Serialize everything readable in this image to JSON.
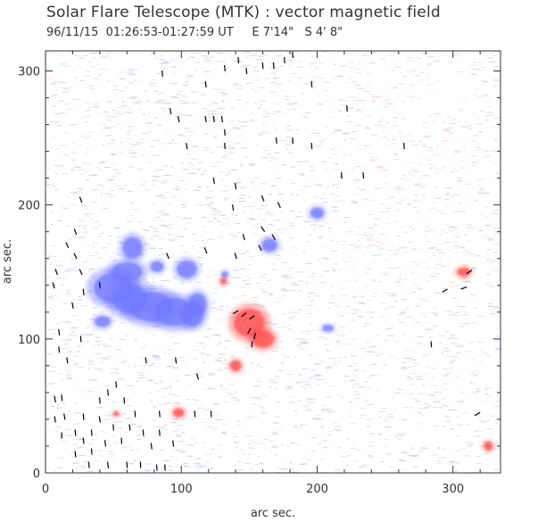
{
  "title": "Solar Flare Telescope (MTK) : vector magnetic field",
  "subtitle": "96/11/15  01:26:53-01:27:59 UT     E 7'14\"   S 4' 8\"",
  "axes": {
    "xlabel": "arc sec.",
    "ylabel": "arc sec.",
    "xlim": [
      0,
      335
    ],
    "ylim": [
      0,
      315
    ],
    "xticks": [
      0,
      100,
      200,
      300
    ],
    "yticks": [
      0,
      100,
      200,
      300
    ]
  },
  "colors": {
    "negative_polarity": "#6f78ff",
    "positive_polarity": "#ff4a4a",
    "background_noise_blue": "#b9bff0",
    "background_noise_red": "#f5c3c3",
    "vector": "#000000",
    "axis": "#333333"
  },
  "magnetic_regions": [
    {
      "polarity": "negative",
      "x": 50,
      "y": 138,
      "rx": 18,
      "ry": 14
    },
    {
      "polarity": "negative",
      "x": 62,
      "y": 130,
      "rx": 16,
      "ry": 14
    },
    {
      "polarity": "negative",
      "x": 78,
      "y": 124,
      "rx": 20,
      "ry": 14
    },
    {
      "polarity": "negative",
      "x": 95,
      "y": 120,
      "rx": 18,
      "ry": 13
    },
    {
      "polarity": "negative",
      "x": 108,
      "y": 118,
      "rx": 10,
      "ry": 11
    },
    {
      "polarity": "negative",
      "x": 112,
      "y": 126,
      "rx": 8,
      "ry": 10
    },
    {
      "polarity": "negative",
      "x": 64,
      "y": 168,
      "rx": 9,
      "ry": 10
    },
    {
      "polarity": "negative",
      "x": 60,
      "y": 150,
      "rx": 14,
      "ry": 9
    },
    {
      "polarity": "negative",
      "x": 82,
      "y": 154,
      "rx": 6,
      "ry": 5
    },
    {
      "polarity": "negative",
      "x": 104,
      "y": 152,
      "rx": 9,
      "ry": 8
    },
    {
      "polarity": "negative",
      "x": 132,
      "y": 148,
      "rx": 3,
      "ry": 3
    },
    {
      "polarity": "negative",
      "x": 42,
      "y": 113,
      "rx": 7,
      "ry": 5
    },
    {
      "polarity": "negative",
      "x": 165,
      "y": 170,
      "rx": 7,
      "ry": 6
    },
    {
      "polarity": "negative",
      "x": 200,
      "y": 194,
      "rx": 6,
      "ry": 5
    },
    {
      "polarity": "negative",
      "x": 208,
      "y": 108,
      "rx": 5,
      "ry": 3
    },
    {
      "polarity": "positive",
      "x": 150,
      "y": 112,
      "rx": 14,
      "ry": 13
    },
    {
      "polarity": "positive",
      "x": 160,
      "y": 100,
      "rx": 10,
      "ry": 8
    },
    {
      "polarity": "positive",
      "x": 140,
      "y": 80,
      "rx": 5,
      "ry": 5
    },
    {
      "polarity": "positive",
      "x": 98,
      "y": 45,
      "rx": 5,
      "ry": 4
    },
    {
      "polarity": "positive",
      "x": 131,
      "y": 143,
      "rx": 3,
      "ry": 3
    },
    {
      "polarity": "positive",
      "x": 308,
      "y": 150,
      "rx": 6,
      "ry": 4
    },
    {
      "polarity": "positive",
      "x": 326,
      "y": 20,
      "rx": 4,
      "ry": 4
    },
    {
      "polarity": "positive",
      "x": 52,
      "y": 44,
      "rx": 3,
      "ry": 2
    }
  ],
  "vectors": [
    {
      "x": 7,
      "y": 55,
      "angle": 100
    },
    {
      "x": 12,
      "y": 56,
      "angle": 95
    },
    {
      "x": 7,
      "y": 40,
      "angle": 98
    },
    {
      "x": 14,
      "y": 42,
      "angle": 100
    },
    {
      "x": 12,
      "y": 28,
      "angle": 92
    },
    {
      "x": 22,
      "y": 30,
      "angle": 96
    },
    {
      "x": 28,
      "y": 42,
      "angle": 95
    },
    {
      "x": 28,
      "y": 24,
      "angle": 97
    },
    {
      "x": 34,
      "y": 30,
      "angle": 94
    },
    {
      "x": 40,
      "y": 40,
      "angle": 99
    },
    {
      "x": 40,
      "y": 54,
      "angle": 95
    },
    {
      "x": 46,
      "y": 60,
      "angle": 98
    },
    {
      "x": 52,
      "y": 66,
      "angle": 96
    },
    {
      "x": 58,
      "y": 54,
      "angle": 93
    },
    {
      "x": 34,
      "y": 16,
      "angle": 95
    },
    {
      "x": 22,
      "y": 14,
      "angle": 96
    },
    {
      "x": 44,
      "y": 22,
      "angle": 98
    },
    {
      "x": 50,
      "y": 34,
      "angle": 95
    },
    {
      "x": 56,
      "y": 24,
      "angle": 92
    },
    {
      "x": 62,
      "y": 34,
      "angle": 96
    },
    {
      "x": 66,
      "y": 44,
      "angle": 94
    },
    {
      "x": 72,
      "y": 30,
      "angle": 95
    },
    {
      "x": 78,
      "y": 20,
      "angle": 98
    },
    {
      "x": 84,
      "y": 44,
      "angle": 97
    },
    {
      "x": 84,
      "y": 30,
      "angle": 95
    },
    {
      "x": 94,
      "y": 22,
      "angle": 96
    },
    {
      "x": 110,
      "y": 44,
      "angle": 94
    },
    {
      "x": 122,
      "y": 44,
      "angle": 95
    },
    {
      "x": 60,
      "y": 6,
      "angle": 96
    },
    {
      "x": 70,
      "y": 6,
      "angle": 92
    },
    {
      "x": 82,
      "y": 4,
      "angle": 95
    },
    {
      "x": 88,
      "y": 4,
      "angle": 94
    },
    {
      "x": 46,
      "y": 6,
      "angle": 97
    },
    {
      "x": 32,
      "y": 6,
      "angle": 95
    },
    {
      "x": 10,
      "y": 105,
      "angle": 98
    },
    {
      "x": 26,
      "y": 100,
      "angle": 95
    },
    {
      "x": 20,
      "y": 125,
      "angle": 100
    },
    {
      "x": 28,
      "y": 135,
      "angle": 97
    },
    {
      "x": 40,
      "y": 140,
      "angle": 96
    },
    {
      "x": 8,
      "y": 150,
      "angle": 110
    },
    {
      "x": 16,
      "y": 170,
      "angle": 115
    },
    {
      "x": 22,
      "y": 162,
      "angle": 118
    },
    {
      "x": 26,
      "y": 150,
      "angle": 115
    },
    {
      "x": 22,
      "y": 180,
      "angle": 112
    },
    {
      "x": 26,
      "y": 204,
      "angle": 110
    },
    {
      "x": 6,
      "y": 140,
      "angle": 105
    },
    {
      "x": 10,
      "y": 92,
      "angle": 95
    },
    {
      "x": 16,
      "y": 84,
      "angle": 98
    },
    {
      "x": 74,
      "y": 84,
      "angle": 100
    },
    {
      "x": 96,
      "y": 84,
      "angle": 98
    },
    {
      "x": 112,
      "y": 72,
      "angle": 105
    },
    {
      "x": 90,
      "y": 162,
      "angle": 112
    },
    {
      "x": 118,
      "y": 166,
      "angle": 110
    },
    {
      "x": 140,
      "y": 162,
      "angle": 108
    },
    {
      "x": 158,
      "y": 168,
      "angle": 115
    },
    {
      "x": 168,
      "y": 176,
      "angle": 120
    },
    {
      "x": 146,
      "y": 176,
      "angle": 105
    },
    {
      "x": 160,
      "y": 182,
      "angle": 125
    },
    {
      "x": 140,
      "y": 120,
      "angle": 30
    },
    {
      "x": 146,
      "y": 118,
      "angle": 40
    },
    {
      "x": 152,
      "y": 116,
      "angle": 35
    },
    {
      "x": 150,
      "y": 106,
      "angle": 60
    },
    {
      "x": 154,
      "y": 102,
      "angle": 80
    },
    {
      "x": 152,
      "y": 96,
      "angle": 85
    },
    {
      "x": 138,
      "y": 198,
      "angle": 100
    },
    {
      "x": 160,
      "y": 205,
      "angle": 110
    },
    {
      "x": 172,
      "y": 200,
      "angle": 115
    },
    {
      "x": 140,
      "y": 214,
      "angle": 100
    },
    {
      "x": 124,
      "y": 218,
      "angle": 98
    },
    {
      "x": 104,
      "y": 244,
      "angle": 100
    },
    {
      "x": 132,
      "y": 244,
      "angle": 95
    },
    {
      "x": 170,
      "y": 248,
      "angle": 95
    },
    {
      "x": 182,
      "y": 248,
      "angle": 92
    },
    {
      "x": 196,
      "y": 244,
      "angle": 94
    },
    {
      "x": 218,
      "y": 222,
      "angle": 94
    },
    {
      "x": 234,
      "y": 222,
      "angle": 96
    },
    {
      "x": 264,
      "y": 244,
      "angle": 94
    },
    {
      "x": 92,
      "y": 270,
      "angle": 100
    },
    {
      "x": 98,
      "y": 264,
      "angle": 102
    },
    {
      "x": 118,
      "y": 264,
      "angle": 100
    },
    {
      "x": 124,
      "y": 264,
      "angle": 98
    },
    {
      "x": 130,
      "y": 264,
      "angle": 100
    },
    {
      "x": 222,
      "y": 272,
      "angle": 94
    },
    {
      "x": 132,
      "y": 254,
      "angle": 95
    },
    {
      "x": 118,
      "y": 290,
      "angle": 98
    },
    {
      "x": 132,
      "y": 302,
      "angle": 96
    },
    {
      "x": 142,
      "y": 308,
      "angle": 95
    },
    {
      "x": 148,
      "y": 300,
      "angle": 97
    },
    {
      "x": 160,
      "y": 304,
      "angle": 96
    },
    {
      "x": 168,
      "y": 304,
      "angle": 94
    },
    {
      "x": 176,
      "y": 308,
      "angle": 95
    },
    {
      "x": 182,
      "y": 312,
      "angle": 96
    },
    {
      "x": 196,
      "y": 290,
      "angle": 94
    },
    {
      "x": 86,
      "y": 298,
      "angle": 96
    },
    {
      "x": 284,
      "y": 96,
      "angle": 95
    },
    {
      "x": 294,
      "y": 136,
      "angle": 30
    },
    {
      "x": 308,
      "y": 138,
      "angle": 20
    },
    {
      "x": 312,
      "y": 150,
      "angle": 35
    },
    {
      "x": 318,
      "y": 44,
      "angle": 30
    }
  ]
}
